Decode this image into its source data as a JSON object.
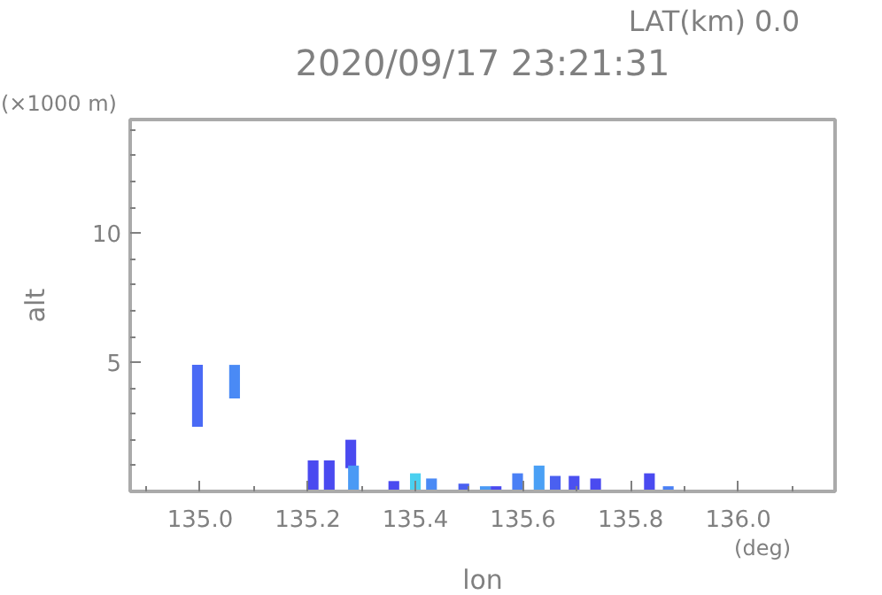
{
  "chart_data": {
    "type": "bar",
    "title": "2020/09/17 23:21:31",
    "xlabel": "lon",
    "ylabel": "alt",
    "annotations": [
      "LAT(km) 0.0",
      "(×1000 m)",
      "(deg)"
    ],
    "x": [
      134.995,
      135.064,
      135.21,
      135.24,
      135.28,
      135.285,
      135.36,
      135.4,
      135.43,
      135.49,
      135.53,
      135.55,
      135.59,
      135.63,
      135.66,
      135.695,
      135.735,
      135.835,
      135.87
    ],
    "base": [
      2.5,
      3.6,
      0,
      0,
      0.9,
      0,
      0,
      0,
      0,
      0,
      0,
      0,
      0,
      0,
      0,
      0,
      0,
      0,
      0
    ],
    "values": [
      2.4,
      1.3,
      1.2,
      1.2,
      1.1,
      1.0,
      0.4,
      0.7,
      0.5,
      0.3,
      0.2,
      0.2,
      0.7,
      1.0,
      0.6,
      0.6,
      0.5,
      0.7,
      0.2
    ],
    "colors": [
      "#4a6af5",
      "#4a8af5",
      "#4a4af0",
      "#4a4af0",
      "#4a4af0",
      "#4a9af5",
      "#4a4af0",
      "#4ad0f0",
      "#4a8af5",
      "#4a60f0",
      "#4a9af5",
      "#4a4af0",
      "#4a80f5",
      "#4aa0f5",
      "#4a60f0",
      "#4a50f0",
      "#4a4af0",
      "#4a4af0",
      "#4a80f5"
    ],
    "xlim": [
      134.87,
      136.18
    ],
    "ylim": [
      0,
      14.4
    ],
    "xticks": [
      {
        "value": 135.0,
        "label": "135.0"
      },
      {
        "value": 135.2,
        "label": "135.2"
      },
      {
        "value": 135.4,
        "label": "135.4"
      },
      {
        "value": 135.6,
        "label": "135.6"
      },
      {
        "value": 135.8,
        "label": "135.8"
      },
      {
        "value": 136.0,
        "label": "136.0"
      },
      {
        "value": 134.9,
        "label": null
      },
      {
        "value": 135.1,
        "label": null
      },
      {
        "value": 135.3,
        "label": null
      },
      {
        "value": 135.5,
        "label": null
      },
      {
        "value": 135.7,
        "label": null
      },
      {
        "value": 135.9,
        "label": null
      },
      {
        "value": 136.1,
        "label": null
      }
    ],
    "yticks": [
      5,
      10,
      {
        "value": 1,
        "label": null
      },
      {
        "value": 2,
        "label": null
      },
      {
        "value": 3,
        "label": null
      },
      {
        "value": 4,
        "label": null
      },
      {
        "value": 6,
        "label": null
      },
      {
        "value": 7,
        "label": null
      },
      {
        "value": 8,
        "label": null
      },
      {
        "value": 9,
        "label": null
      },
      {
        "value": 11,
        "label": null
      },
      {
        "value": 12,
        "label": null
      },
      {
        "value": 13,
        "label": null
      },
      {
        "value": 14,
        "label": null
      }
    ],
    "grid": false
  }
}
